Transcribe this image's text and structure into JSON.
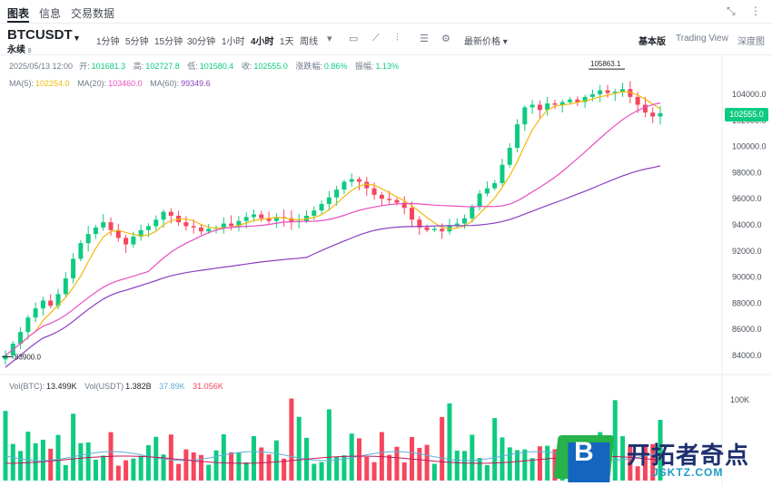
{
  "top_tabs": [
    "图表",
    "信息",
    "交易数据"
  ],
  "top_icons": [
    "expand-icon",
    "more-icon"
  ],
  "symbol": {
    "name": "BTCUSDT",
    "subtitle": "永续",
    "tag": "8"
  },
  "timeframes": [
    "1分钟",
    "5分钟",
    "15分钟",
    "30分钟",
    "1小时",
    "4小时",
    "1天",
    "周线"
  ],
  "active_timeframe": "4小时",
  "tools": [
    "candle-type-icon",
    "indicator-icon",
    "drawing-icon",
    "settings-icon"
  ],
  "price_type": "最新价格",
  "views": [
    "基本版",
    "Trading View",
    "深度图"
  ],
  "active_view": "基本版",
  "ohlc": {
    "date": "2025/05/13 12:00",
    "open_label": "开:",
    "open": "101681.3",
    "high_label": "高:",
    "high": "102727.8",
    "low_label": "低:",
    "low": "101580.4",
    "close_label": "收:",
    "close": "102555.0",
    "change_label": "涨跌幅:",
    "change": "0.86%",
    "amp_label": "振幅:",
    "amp": "1.13%"
  },
  "ma": {
    "ma5_label": "MA(5):",
    "ma5": "102254.0",
    "ma20_label": "MA(20):",
    "ma20": "103460.0",
    "ma60_label": "MA(60):",
    "ma60": "99349.6"
  },
  "volume_info": {
    "vol_btc_label": "Vol(BTC):",
    "vol_btc": "13.499K",
    "vol_usdt_label": "Vol(USDT)",
    "vol_usdt": "1.382B",
    "ma_a": "37.89K",
    "ma_b": "31.056K"
  },
  "price_axis": [
    "104000.0",
    "102000.0",
    "100000.0",
    "98000.0",
    "96000.0",
    "94000.0",
    "92000.0",
    "90000.0",
    "88000.0",
    "86000.0",
    "84000.0"
  ],
  "volume_axis": [
    "100K"
  ],
  "last_price": "102555.0",
  "high_marker": "105863.1",
  "low_marker": "83900.0",
  "colors": {
    "up": "#0ecb81",
    "down": "#f6465d",
    "ma5": "#f0b90b",
    "ma20": "#e74ec2",
    "ma60": "#8a3fbf"
  },
  "watermark": {
    "name": "开拓者奇点",
    "url": "JSKTZ.COM",
    "letter": "B"
  },
  "chart_data": {
    "type": "candlestick",
    "interval": "4小时",
    "series_close": [
      84000,
      84900,
      85800,
      86900,
      87600,
      88200,
      87800,
      88700,
      89900,
      91400,
      92600,
      93300,
      93800,
      94200,
      93600,
      93000,
      92500,
      93100,
      93600,
      93900,
      94400,
      95000,
      94700,
      94200,
      93900,
      93800,
      93500,
      93700,
      93800,
      94100,
      93900,
      94300,
      94600,
      94800,
      94500,
      94300,
      94600,
      94500,
      94200,
      94300,
      94700,
      95100,
      95600,
      96100,
      96700,
      97300,
      97500,
      97300,
      96800,
      96300,
      96000,
      95900,
      95700,
      95300,
      94400,
      93800,
      93600,
      93700,
      93500,
      93900,
      94100,
      94500,
      95400,
      96400,
      96800,
      97200,
      98600,
      99900,
      101700,
      103000,
      103200,
      102800,
      103300,
      103200,
      103400,
      103600,
      103400,
      103800,
      104000,
      104300,
      104100,
      104200,
      104400,
      103800,
      103200,
      102600,
      102300,
      102555
    ],
    "ma60_end": 99349.6,
    "high": 105863.1,
    "low": 83900.0
  }
}
